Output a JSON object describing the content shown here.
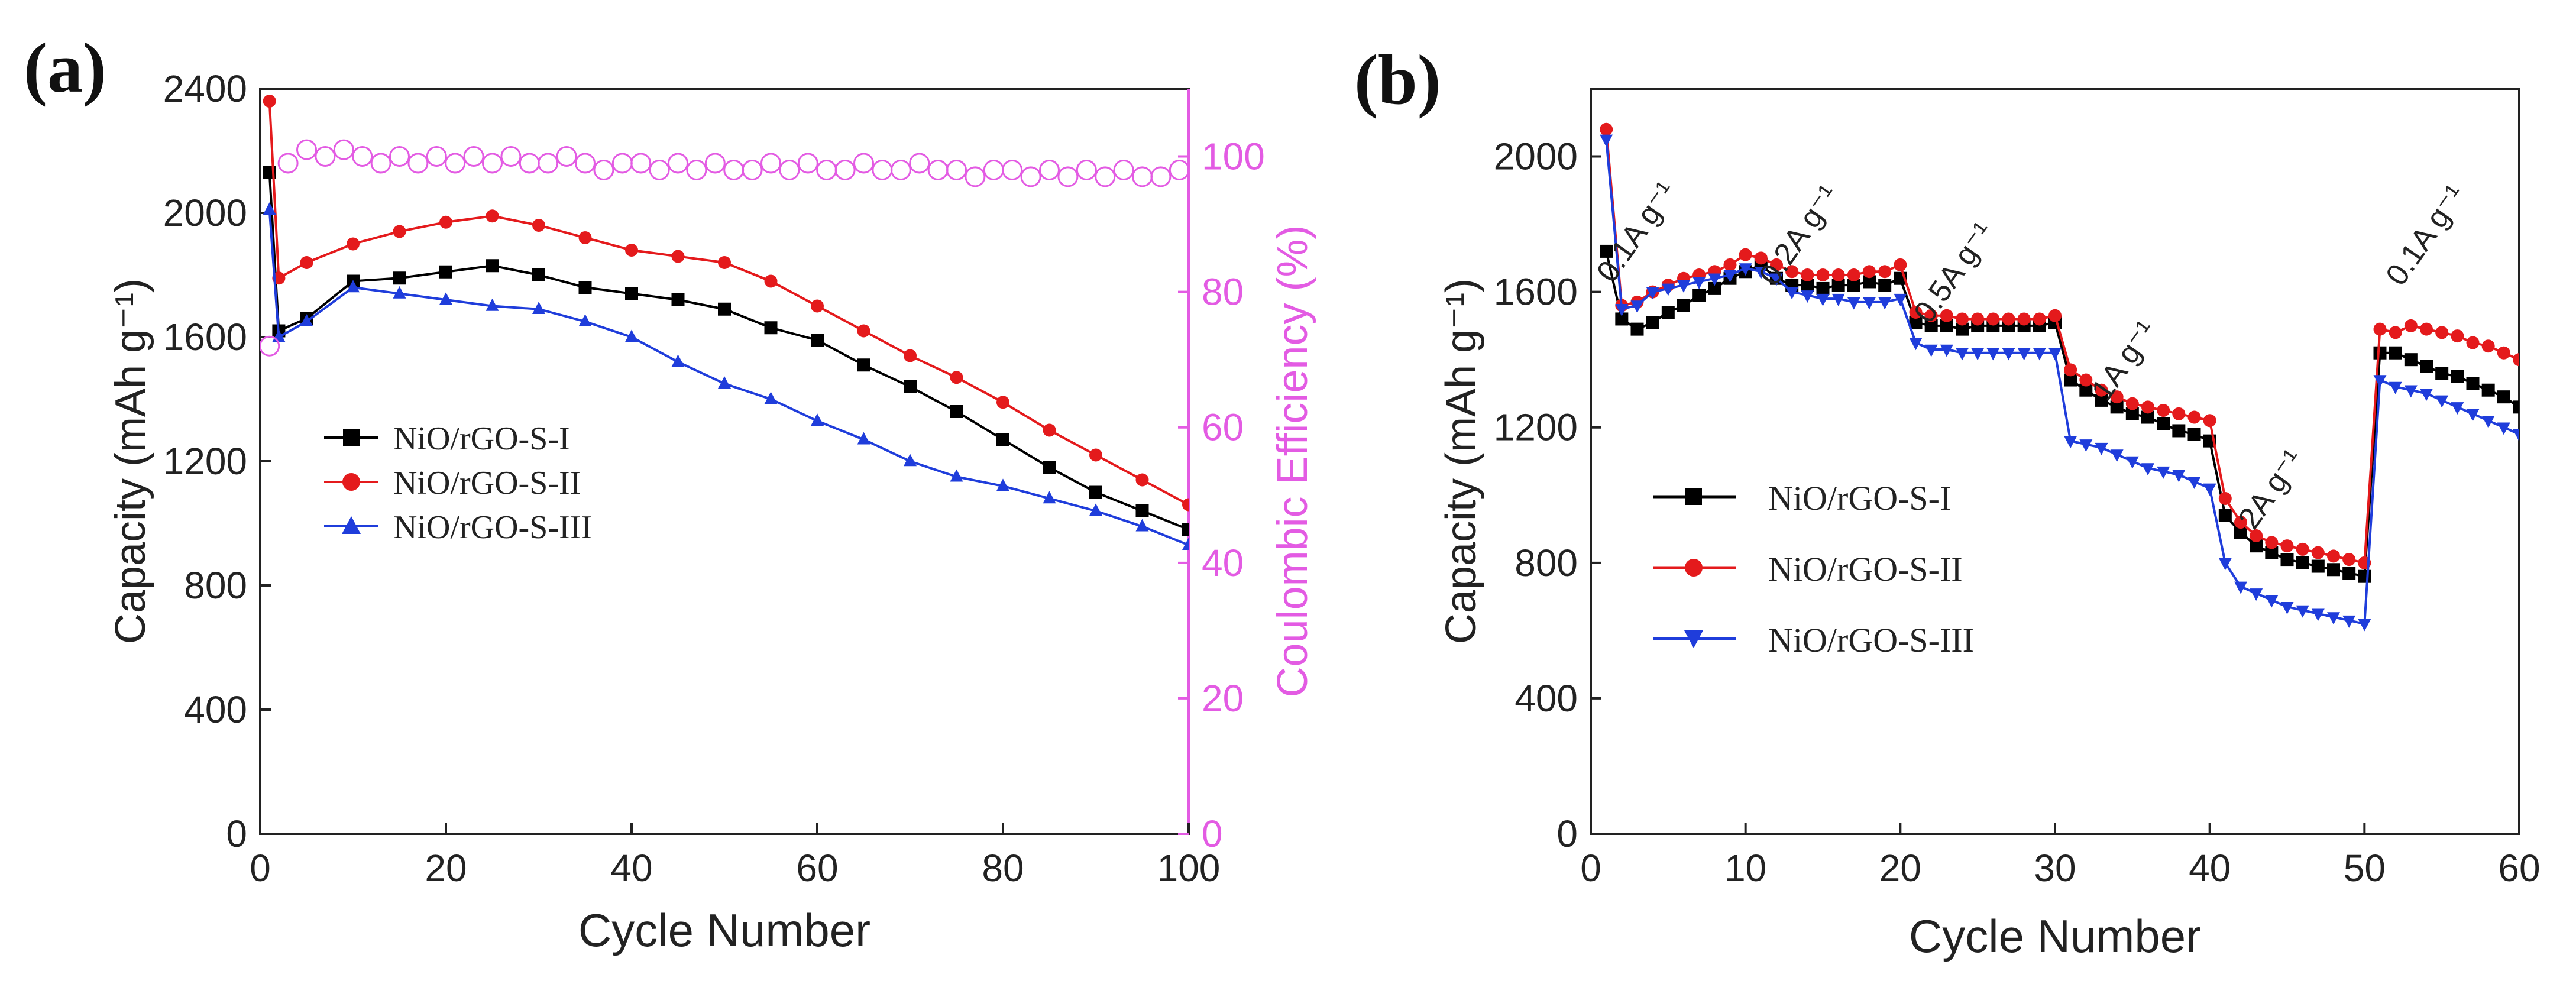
{
  "chart_data": [
    {
      "panel_label": "(a)",
      "type": "line",
      "title": "",
      "xlabel": "Cycle Number",
      "ylabel": "Capacity (mAh g⁻¹)",
      "ylabel_right": "Coulombic Efficiency (%)",
      "xlim": [
        0,
        100
      ],
      "ylim": [
        0,
        2400
      ],
      "ylim_right": [
        0,
        110
      ],
      "x_ticks": [
        "0",
        "20",
        "40",
        "60",
        "80",
        "100"
      ],
      "y_ticks": [
        "0",
        "400",
        "800",
        "1200",
        "1600",
        "2000",
        "2400"
      ],
      "y_ticks_right": [
        "0",
        "20",
        "40",
        "60",
        "80",
        "100"
      ],
      "legend_position": "center-left",
      "series": [
        {
          "name": "NiO/rGO-S-I",
          "color": "#000000",
          "marker": "square",
          "x": [
            1,
            2,
            5,
            10,
            15,
            20,
            25,
            30,
            35,
            40,
            45,
            50,
            55,
            60,
            65,
            70,
            75,
            80,
            85,
            90,
            95,
            100
          ],
          "values": [
            2130,
            1620,
            1660,
            1780,
            1790,
            1810,
            1830,
            1800,
            1760,
            1740,
            1720,
            1690,
            1630,
            1590,
            1510,
            1440,
            1360,
            1270,
            1180,
            1100,
            1040,
            980
          ]
        },
        {
          "name": "NiO/rGO-S-II",
          "color": "#e41a1c",
          "marker": "circle",
          "x": [
            1,
            2,
            5,
            10,
            15,
            20,
            25,
            30,
            35,
            40,
            45,
            50,
            55,
            60,
            65,
            70,
            75,
            80,
            85,
            90,
            95,
            100
          ],
          "values": [
            2360,
            1790,
            1840,
            1900,
            1940,
            1970,
            1990,
            1960,
            1920,
            1880,
            1860,
            1840,
            1780,
            1700,
            1620,
            1540,
            1470,
            1390,
            1300,
            1220,
            1140,
            1060
          ]
        },
        {
          "name": "NiO/rGO-S-III",
          "color": "#1f3ddb",
          "marker": "triangle",
          "x": [
            1,
            2,
            5,
            10,
            15,
            20,
            25,
            30,
            35,
            40,
            45,
            50,
            55,
            60,
            65,
            70,
            75,
            80,
            85,
            90,
            95,
            100
          ],
          "values": [
            2010,
            1600,
            1650,
            1760,
            1740,
            1720,
            1700,
            1690,
            1650,
            1600,
            1520,
            1450,
            1400,
            1330,
            1270,
            1200,
            1150,
            1120,
            1080,
            1040,
            990,
            930
          ]
        },
        {
          "name": "Coulombic Efficiency",
          "color": "#e35be3",
          "marker": "open-circle",
          "axis": "right",
          "x": [
            1,
            3,
            5,
            7,
            9,
            11,
            13,
            15,
            17,
            19,
            21,
            23,
            25,
            27,
            29,
            31,
            33,
            35,
            37,
            39,
            41,
            43,
            45,
            47,
            49,
            51,
            53,
            55,
            57,
            59,
            61,
            63,
            65,
            67,
            69,
            71,
            73,
            75,
            77,
            79,
            81,
            83,
            85,
            87,
            89,
            91,
            93,
            95,
            97,
            99
          ],
          "values": [
            72,
            99,
            101,
            100,
            101,
            100,
            99,
            100,
            99,
            100,
            99,
            100,
            99,
            100,
            99,
            99,
            100,
            99,
            98,
            99,
            99,
            98,
            99,
            98,
            99,
            98,
            98,
            99,
            98,
            99,
            98,
            98,
            99,
            98,
            98,
            99,
            98,
            98,
            97,
            98,
            98,
            97,
            98,
            97,
            98,
            97,
            98,
            97,
            97,
            98
          ]
        }
      ]
    },
    {
      "panel_label": "(b)",
      "type": "line",
      "title": "",
      "xlabel": "Cycle Number",
      "ylabel": "Capacity (mAh g⁻¹)",
      "xlim": [
        0,
        60
      ],
      "ylim": [
        0,
        2200
      ],
      "x_ticks": [
        "0",
        "10",
        "20",
        "30",
        "40",
        "50",
        "60"
      ],
      "y_ticks": [
        "0",
        "400",
        "800",
        "1200",
        "1600",
        "2000"
      ],
      "legend_position": "center-left",
      "annotations": [
        {
          "text": "0.1A g⁻¹",
          "x": 3.5,
          "y": 1760
        },
        {
          "text": "0.2A g⁻¹",
          "x": 14,
          "y": 1750
        },
        {
          "text": "0.5A g⁻¹",
          "x": 24,
          "y": 1640
        },
        {
          "text": "1A g⁻¹",
          "x": 35,
          "y": 1380
        },
        {
          "text": "2A g⁻¹",
          "x": 44.5,
          "y": 1000
        },
        {
          "text": "0.1A g⁻¹",
          "x": 54.5,
          "y": 1750
        }
      ],
      "series": [
        {
          "name": "NiO/rGO-S-I",
          "color": "#000000",
          "marker": "square",
          "x": [
            1,
            2,
            3,
            4,
            5,
            6,
            7,
            8,
            9,
            10,
            11,
            12,
            13,
            14,
            15,
            16,
            17,
            18,
            19,
            20,
            21,
            22,
            23,
            24,
            25,
            26,
            27,
            28,
            29,
            30,
            31,
            32,
            33,
            34,
            35,
            36,
            37,
            38,
            39,
            40,
            41,
            42,
            43,
            44,
            45,
            46,
            47,
            48,
            49,
            50,
            51,
            52,
            53,
            54,
            55,
            56,
            57,
            58,
            59,
            60
          ],
          "values": [
            1720,
            1520,
            1490,
            1510,
            1540,
            1560,
            1590,
            1610,
            1640,
            1660,
            1680,
            1640,
            1620,
            1620,
            1610,
            1620,
            1620,
            1630,
            1620,
            1640,
            1510,
            1500,
            1500,
            1490,
            1500,
            1500,
            1500,
            1500,
            1500,
            1510,
            1340,
            1310,
            1280,
            1260,
            1240,
            1230,
            1210,
            1190,
            1180,
            1160,
            940,
            890,
            850,
            830,
            810,
            800,
            790,
            780,
            770,
            760,
            1420,
            1420,
            1400,
            1380,
            1360,
            1350,
            1330,
            1310,
            1290,
            1260
          ]
        },
        {
          "name": "NiO/rGO-S-II",
          "color": "#e41a1c",
          "marker": "circle",
          "x": [
            1,
            2,
            3,
            4,
            5,
            6,
            7,
            8,
            9,
            10,
            11,
            12,
            13,
            14,
            15,
            16,
            17,
            18,
            19,
            20,
            21,
            22,
            23,
            24,
            25,
            26,
            27,
            28,
            29,
            30,
            31,
            32,
            33,
            34,
            35,
            36,
            37,
            38,
            39,
            40,
            41,
            42,
            43,
            44,
            45,
            46,
            47,
            48,
            49,
            50,
            51,
            52,
            53,
            54,
            55,
            56,
            57,
            58,
            59,
            60
          ],
          "values": [
            2080,
            1560,
            1570,
            1600,
            1620,
            1640,
            1650,
            1660,
            1680,
            1710,
            1700,
            1680,
            1660,
            1650,
            1650,
            1650,
            1650,
            1660,
            1660,
            1680,
            1540,
            1530,
            1530,
            1520,
            1520,
            1520,
            1520,
            1520,
            1520,
            1530,
            1370,
            1340,
            1310,
            1290,
            1270,
            1260,
            1250,
            1240,
            1230,
            1220,
            990,
            920,
            880,
            860,
            850,
            840,
            830,
            820,
            810,
            800,
            1490,
            1480,
            1500,
            1490,
            1480,
            1470,
            1450,
            1440,
            1420,
            1400
          ]
        },
        {
          "name": "NiO/rGO-S-III",
          "color": "#1f3ddb",
          "marker": "triangle-down",
          "x": [
            1,
            2,
            3,
            4,
            5,
            6,
            7,
            8,
            9,
            10,
            11,
            12,
            13,
            14,
            15,
            16,
            17,
            18,
            19,
            20,
            21,
            22,
            23,
            24,
            25,
            26,
            27,
            28,
            29,
            30,
            31,
            32,
            33,
            34,
            35,
            36,
            37,
            38,
            39,
            40,
            41,
            42,
            43,
            44,
            45,
            46,
            47,
            48,
            49,
            50,
            51,
            52,
            53,
            54,
            55,
            56,
            57,
            58,
            59,
            60
          ],
          "values": [
            2050,
            1550,
            1560,
            1600,
            1610,
            1620,
            1630,
            1640,
            1650,
            1670,
            1660,
            1640,
            1600,
            1590,
            1580,
            1580,
            1570,
            1570,
            1570,
            1580,
            1450,
            1430,
            1430,
            1420,
            1420,
            1420,
            1420,
            1420,
            1420,
            1420,
            1160,
            1150,
            1140,
            1120,
            1100,
            1080,
            1070,
            1060,
            1040,
            1020,
            800,
            730,
            710,
            690,
            670,
            660,
            650,
            640,
            630,
            620,
            1340,
            1320,
            1310,
            1300,
            1280,
            1260,
            1240,
            1220,
            1200,
            1180
          ]
        }
      ]
    }
  ]
}
